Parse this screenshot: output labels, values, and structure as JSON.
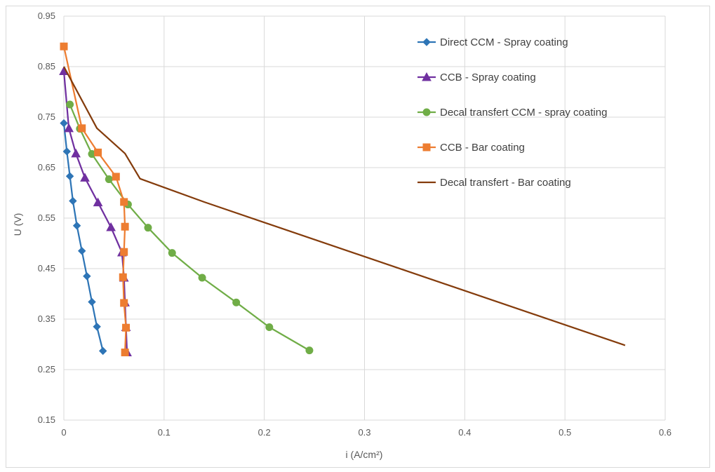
{
  "chart_data": {
    "type": "line",
    "title": "",
    "xlabel": "i (A/cm²)",
    "ylabel": "U (V)",
    "xlim": [
      0,
      0.6
    ],
    "ylim": [
      0.15,
      0.95
    ],
    "xticks": [
      0,
      0.1,
      0.2,
      0.3,
      0.4,
      0.5,
      0.6
    ],
    "xtick_labels": [
      "0",
      "0.1",
      "0.2",
      "0.3",
      "0.4",
      "0.5",
      "0.6"
    ],
    "yticks": [
      0.15,
      0.25,
      0.35,
      0.45,
      0.55,
      0.65,
      0.75,
      0.85,
      0.95
    ],
    "ytick_labels": [
      "0.15",
      "0.25",
      "0.35",
      "0.45",
      "0.55",
      "0.65",
      "0.75",
      "0.85",
      "0.95"
    ],
    "grid": true,
    "legend_position": "top-right",
    "series": [
      {
        "name": "Direct CCM - Spray coating",
        "color": "#2E75B6",
        "marker": "diamond",
        "x": [
          0,
          0.003,
          0.006,
          0.009,
          0.013,
          0.018,
          0.023,
          0.028,
          0.033,
          0.039
        ],
        "y": [
          0.738,
          0.682,
          0.633,
          0.584,
          0.535,
          0.485,
          0.435,
          0.384,
          0.335,
          0.287
        ]
      },
      {
        "name": "CCB - Spray coating",
        "color": "#7030A0",
        "marker": "triangle",
        "x": [
          0,
          0.005,
          0.012,
          0.021,
          0.034,
          0.047,
          0.058,
          0.06,
          0.061,
          0.062,
          0.063,
          0.063
        ],
        "y": [
          0.841,
          0.728,
          0.678,
          0.63,
          0.581,
          0.532,
          0.482,
          0.432,
          0.383,
          0.334,
          0.284,
          0.284
        ]
      },
      {
        "name": "Decal transfert CCM - spray coating",
        "color": "#70AD47",
        "marker": "circle",
        "x": [
          0.006,
          0.016,
          0.028,
          0.045,
          0.064,
          0.084,
          0.108,
          0.138,
          0.172,
          0.205,
          0.245
        ],
        "y": [
          0.775,
          0.727,
          0.677,
          0.627,
          0.577,
          0.531,
          0.481,
          0.432,
          0.383,
          0.334,
          0.288
        ]
      },
      {
        "name": "CCB - Bar coating",
        "color": "#ED7D31",
        "marker": "square",
        "x": [
          0,
          0.018,
          0.034,
          0.052,
          0.06,
          0.061,
          0.06,
          0.059,
          0.06,
          0.062,
          0.061
        ],
        "y": [
          0.89,
          0.728,
          0.68,
          0.632,
          0.582,
          0.533,
          0.483,
          0.433,
          0.382,
          0.333,
          0.284
        ]
      },
      {
        "name": "Decal transfert - Bar coating",
        "color": "#843C0C",
        "marker": "none",
        "x": [
          0,
          0.033,
          0.061,
          0.076,
          0.14,
          0.56
        ],
        "y": [
          0.85,
          0.728,
          0.678,
          0.628,
          0.582,
          0.298
        ]
      }
    ]
  }
}
